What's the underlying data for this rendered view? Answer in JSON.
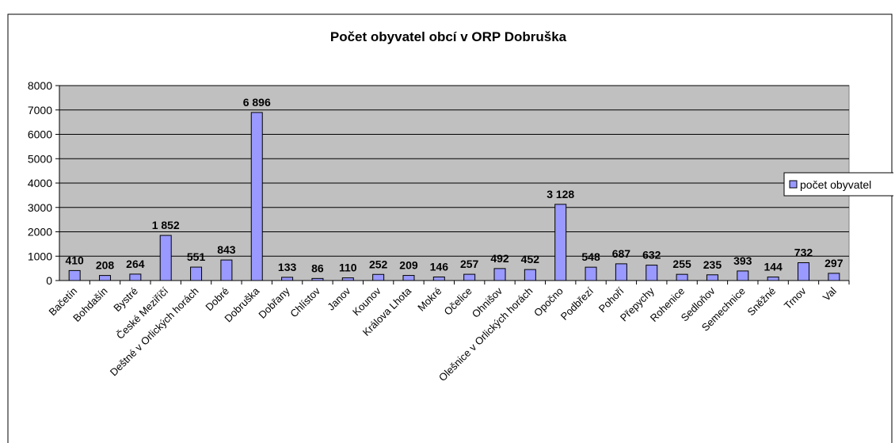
{
  "chart_data": {
    "type": "bar",
    "title": "Počet obyvatel obcí v ORP Dobruška",
    "categories": [
      "Bačetín",
      "Bohdašín",
      "Bystré",
      "České Meziříčí",
      "Deštné v Orlických horách",
      "Dobré",
      "Dobruška",
      "Dobřany",
      "Chlístov",
      "Janov",
      "Kounov",
      "Králova Lhota",
      "Mokré",
      "Očelice",
      "Ohnišov",
      "Olešnice v Orlických horách",
      "Opočno",
      "Podbřezí",
      "Pohoří",
      "Přepychy",
      "Rohenice",
      "Sedloňov",
      "Semechnice",
      "Sněžné",
      "Trnov",
      "Val"
    ],
    "series": [
      {
        "name": "počet obyvatel",
        "color": "#9999ff",
        "values": [
          410,
          208,
          264,
          1852,
          551,
          843,
          6896,
          133,
          86,
          110,
          252,
          209,
          146,
          257,
          492,
          452,
          3128,
          548,
          687,
          632,
          255,
          235,
          393,
          144,
          732,
          297
        ],
        "value_labels": [
          "410",
          "208",
          "264",
          "1 852",
          "551",
          "843",
          "6 896",
          "133",
          "86",
          "110",
          "252",
          "209",
          "146",
          "257",
          "492",
          "452",
          "3 128",
          "548",
          "687",
          "632",
          "255",
          "235",
          "393",
          "144",
          "732",
          "297"
        ]
      }
    ],
    "ylim": [
      0,
      8000
    ],
    "yticks": [
      0,
      1000,
      2000,
      3000,
      4000,
      5000,
      6000,
      7000,
      8000
    ],
    "grid": true,
    "legend": "right"
  }
}
